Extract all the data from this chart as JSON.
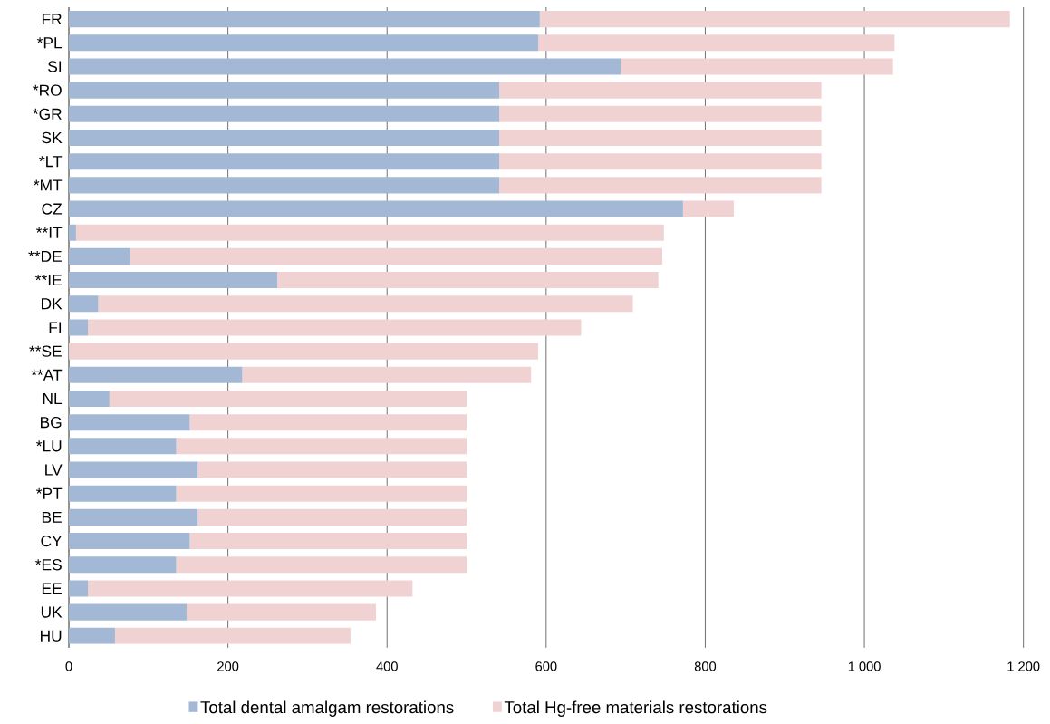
{
  "chart_data": {
    "type": "bar",
    "orientation": "horizontal",
    "stacked": true,
    "categories": [
      "FR",
      "*PL",
      "SI",
      "*RO",
      "*GR",
      "SK",
      "*LT",
      "*MT",
      "CZ",
      "**IT",
      "**DE",
      "**IE",
      "DK",
      "FI",
      "**SE",
      "**AT",
      "NL",
      "BG",
      "*LU",
      "LV",
      "*PT",
      "BE",
      "CY",
      "*ES",
      "EE",
      "UK",
      "HU"
    ],
    "series": [
      {
        "name": "Total dental amalgam restorations",
        "color": "#a3b8d5",
        "values": [
          592,
          590,
          694,
          541,
          541,
          541,
          541,
          541,
          772,
          9,
          77,
          262,
          37,
          24,
          0,
          218,
          51,
          152,
          135,
          162,
          135,
          162,
          152,
          135,
          24,
          148,
          58
        ]
      },
      {
        "name": "Total Hg-free materials restorations",
        "color": "#f0d2d3",
        "values": [
          591,
          448,
          342,
          405,
          405,
          405,
          405,
          405,
          64,
          739,
          669,
          479,
          672,
          620,
          590,
          363,
          449,
          348,
          365,
          338,
          365,
          338,
          348,
          365,
          408,
          238,
          296
        ]
      }
    ],
    "xlim": [
      0,
      1200
    ],
    "xticks": [
      0,
      200,
      400,
      600,
      800,
      {
        "value": 1000,
        "label": "1 000"
      },
      {
        "value": 1200,
        "label": "1 200"
      }
    ],
    "grid": "x",
    "legend": "bottom"
  }
}
